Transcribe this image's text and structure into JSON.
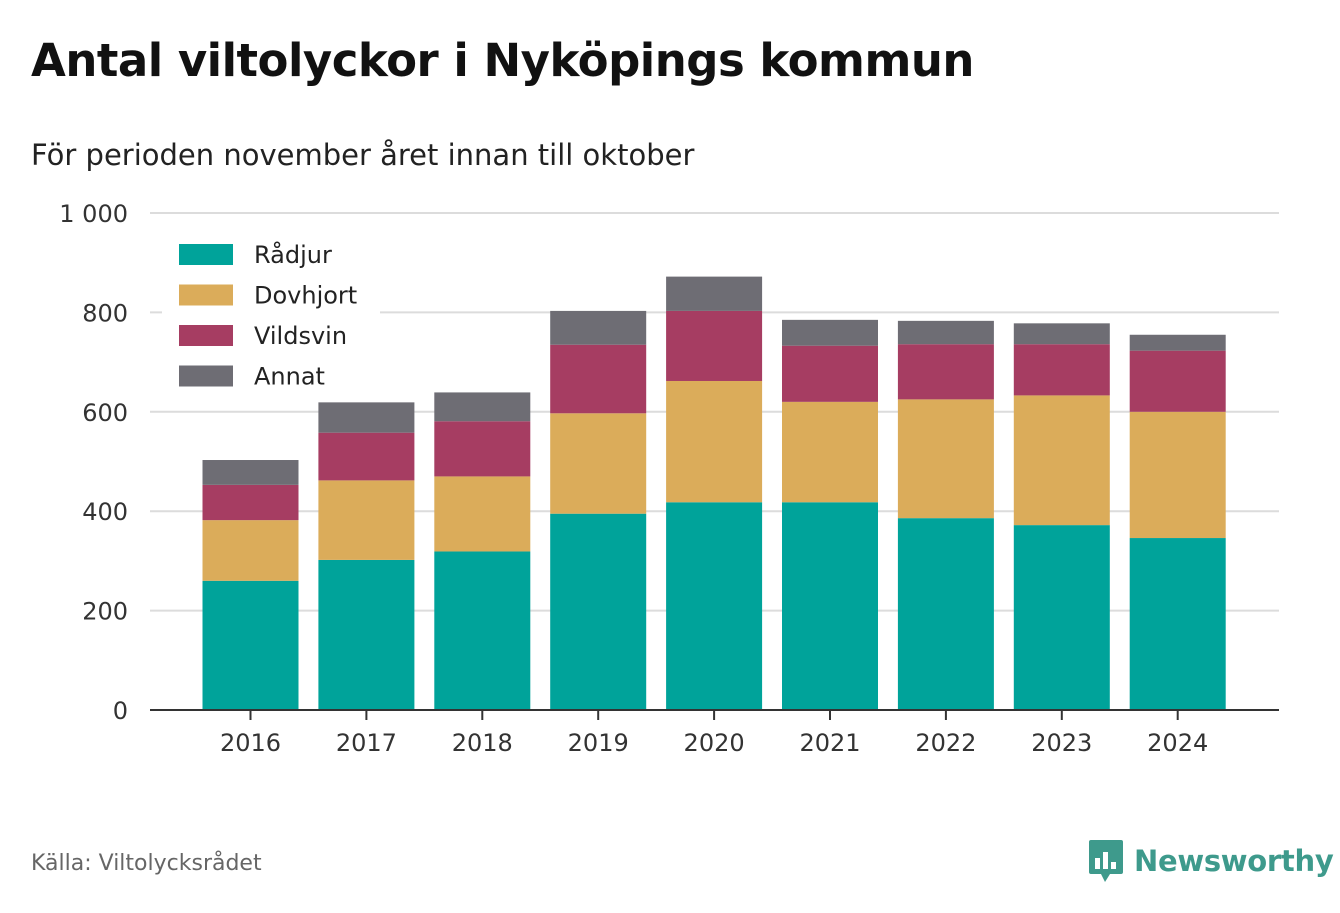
{
  "title": "Antal viltolyckor i Nyköpings kommun",
  "subtitle": "För perioden november året innan till oktober",
  "source": "Källa: Viltolycksrådet",
  "brand": {
    "name": "Newsworthy",
    "logo_icon": "bar-chart-speech-bubble-icon",
    "color": "#3e9a8c"
  },
  "chart_data": {
    "type": "bar",
    "stacked": true,
    "categories": [
      "2016",
      "2017",
      "2018",
      "2019",
      "2020",
      "2021",
      "2022",
      "2023",
      "2024"
    ],
    "series": [
      {
        "name": "Rådjur",
        "color": "#00a39a",
        "values": [
          260,
          302,
          319,
          395,
          418,
          418,
          386,
          372,
          346
        ]
      },
      {
        "name": "Dovhjort",
        "color": "#dbac5a",
        "values": [
          122,
          160,
          151,
          202,
          244,
          202,
          239,
          261,
          254
        ]
      },
      {
        "name": "Vildsvin",
        "color": "#a63d62",
        "values": [
          71,
          96,
          111,
          138,
          141,
          113,
          111,
          103,
          123
        ]
      },
      {
        "name": "Annat",
        "color": "#6e6d74",
        "values": [
          50,
          61,
          58,
          68,
          69,
          52,
          47,
          42,
          32
        ]
      }
    ],
    "ylim": [
      0,
      1000
    ],
    "yticks": [
      0,
      200,
      400,
      600,
      800,
      1000
    ],
    "ytick_labels": [
      "0",
      "200",
      "400",
      "600",
      "800",
      "1 000"
    ],
    "grid": true,
    "legend_position": "top-left",
    "xlabel": "",
    "ylabel": ""
  }
}
